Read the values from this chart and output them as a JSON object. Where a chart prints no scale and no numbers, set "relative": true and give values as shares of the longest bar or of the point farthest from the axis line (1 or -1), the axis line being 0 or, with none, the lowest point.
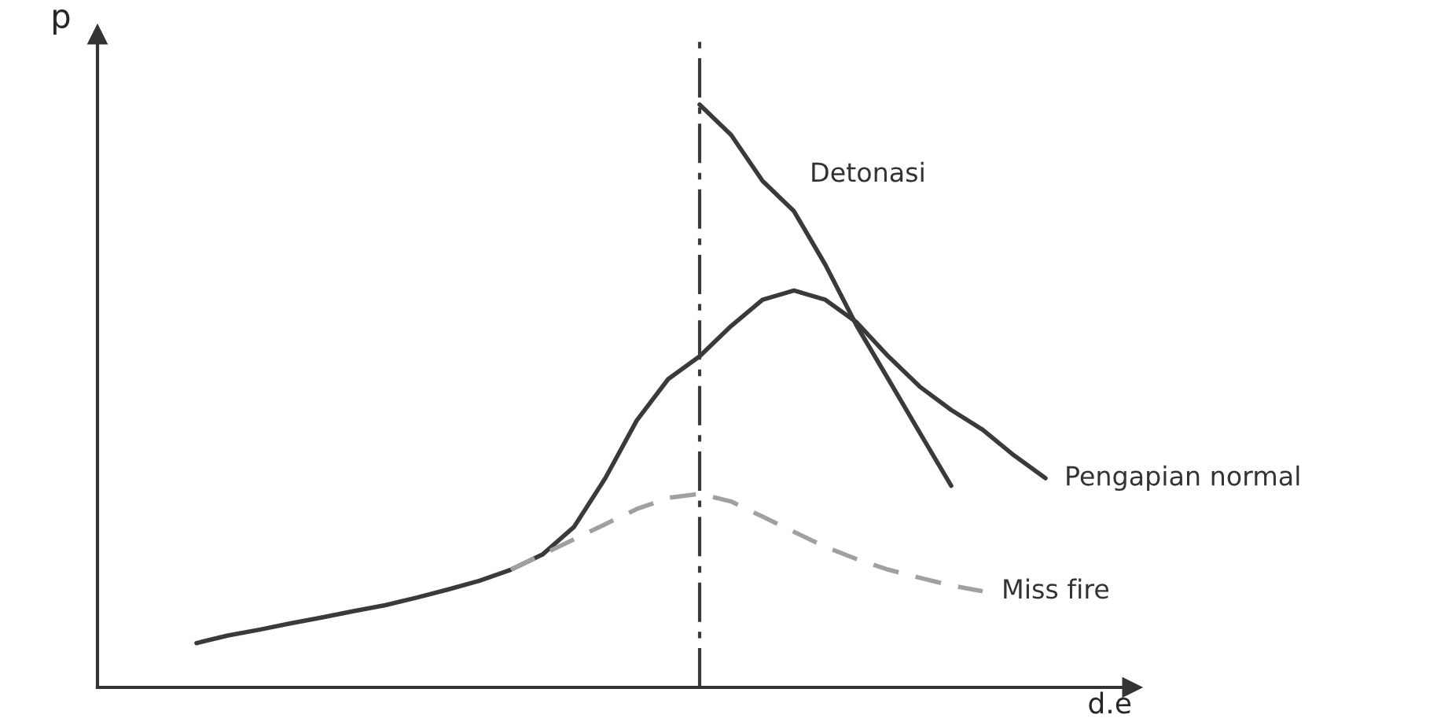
{
  "chart_data": {
    "type": "line",
    "relative": true,
    "xlabel": "d.e",
    "ylabel": "p",
    "categories": [
      null,
      null,
      null,
      null,
      null,
      null,
      null,
      null,
      null,
      null,
      null,
      null,
      null,
      null,
      null,
      null,
      null,
      null,
      null,
      null,
      null,
      null,
      null,
      null,
      null,
      null,
      null,
      null
    ],
    "series": [
      {
        "name": "Pengapian normal",
        "color": "#3a3a3a",
        "line_style": "solid",
        "values": [
          0.076,
          0.089,
          0.099,
          0.11,
          0.12,
          0.131,
          0.141,
          0.154,
          0.168,
          0.183,
          0.202,
          0.228,
          0.275,
          0.359,
          0.458,
          0.529,
          0.568,
          0.62,
          0.665,
          0.681,
          0.665,
          0.626,
          0.568,
          0.516,
          0.476,
          0.442,
          0.398,
          0.359
        ]
      },
      {
        "name": "Detonasi",
        "color": "#3a3a3a",
        "line_style": "solid",
        "values": [
          null,
          null,
          null,
          null,
          null,
          null,
          null,
          null,
          null,
          null,
          null,
          null,
          null,
          null,
          null,
          null,
          1.0,
          0.948,
          0.869,
          0.817,
          0.725,
          0.62,
          0.529,
          0.437,
          0.346,
          null,
          null,
          null
        ]
      },
      {
        "name": "Miss fire",
        "color": "#a0a0a0",
        "line_style": "dashed",
        "values": [
          null,
          null,
          null,
          null,
          null,
          null,
          null,
          null,
          null,
          null,
          0.202,
          0.228,
          0.254,
          0.28,
          0.306,
          0.325,
          0.332,
          0.319,
          0.293,
          0.267,
          0.241,
          0.22,
          0.202,
          0.188,
          0.175,
          0.165,
          null,
          null
        ]
      }
    ],
    "legend": false,
    "tick_labels": false
  }
}
